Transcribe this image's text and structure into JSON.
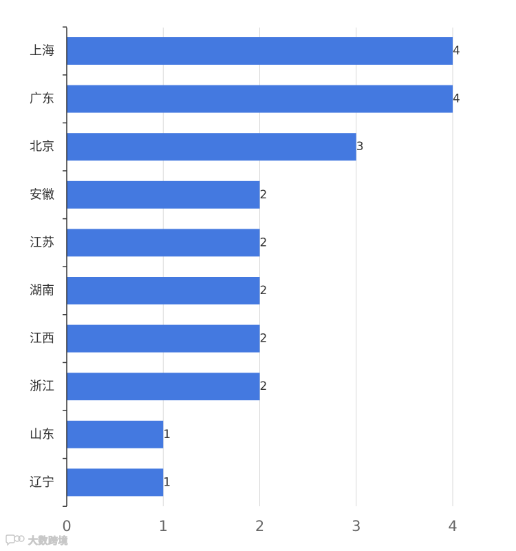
{
  "colors": {
    "bar": "#4479e0",
    "axis": "#333333",
    "grid": "#d9d9d9",
    "label_text": "#333333",
    "tick_text": "#666666"
  },
  "watermark": {
    "text": "大数跨境",
    "icon": "chat-bubble-logo-icon"
  },
  "chart_data": {
    "type": "bar",
    "orientation": "horizontal",
    "categories": [
      "上海",
      "广东",
      "北京",
      "安徽",
      "江苏",
      "湖南",
      "江西",
      "浙江",
      "山东",
      "辽宁"
    ],
    "values": [
      4,
      4,
      3,
      2,
      2,
      2,
      2,
      2,
      1,
      1
    ],
    "data_labels": [
      "4",
      "4",
      "3",
      "2",
      "2",
      "2",
      "2",
      "2",
      "1",
      "1"
    ],
    "xlim": [
      0,
      4
    ],
    "x_ticks": [
      0,
      1,
      2,
      3,
      4
    ],
    "x_tick_labels": [
      "0",
      "1",
      "2",
      "3",
      "4"
    ],
    "grid": true,
    "legend": "none"
  }
}
